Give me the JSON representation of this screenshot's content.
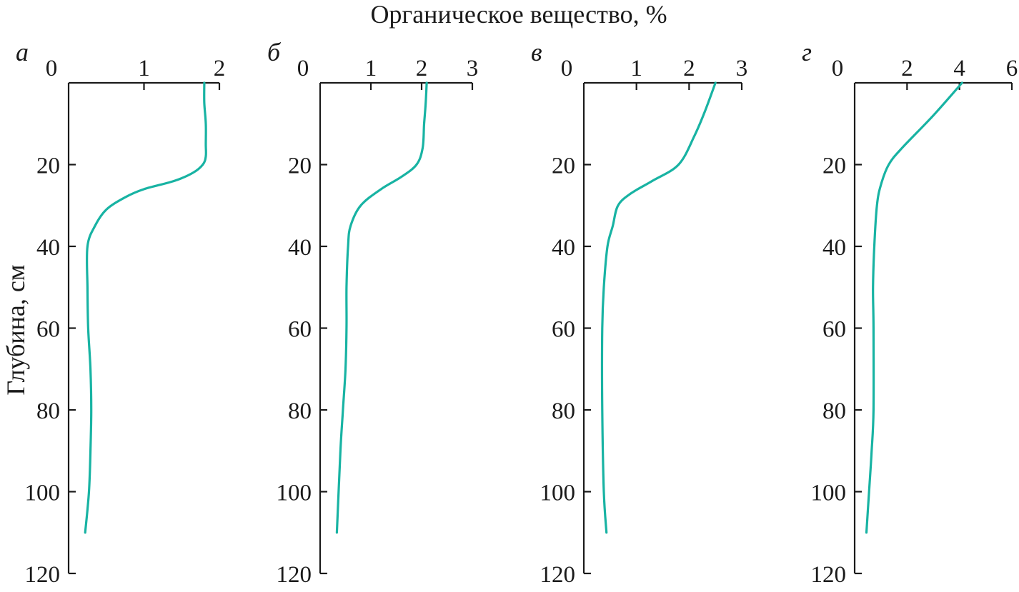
{
  "figure": {
    "title": "Органическое вещество, %",
    "ylabel": "Глубина, см",
    "line_color": "#18b3a3"
  },
  "chart_data": [
    {
      "type": "line",
      "panel": "а",
      "xlim": [
        0,
        2
      ],
      "xticks": [
        0,
        1,
        2
      ],
      "ylim": [
        0,
        120
      ],
      "yticks": [
        20,
        40,
        60,
        80,
        100,
        120
      ],
      "y_inverted": true,
      "series": [
        {
          "x": [
            1.8,
            1.8,
            1.82,
            1.82,
            1.82,
            1.78,
            1.65,
            1.4,
            1.0,
            0.75,
            0.5,
            0.35,
            0.25,
            0.25,
            0.26,
            0.29,
            0.3,
            0.29,
            0.27,
            0.22
          ],
          "y": [
            0,
            5,
            10,
            15,
            18,
            20,
            22,
            24,
            26,
            28,
            31,
            35,
            40,
            50,
            60,
            70,
            80,
            90,
            100,
            110
          ]
        }
      ]
    },
    {
      "type": "line",
      "panel": "б",
      "xlim": [
        0,
        3
      ],
      "xticks": [
        0,
        1,
        2,
        3
      ],
      "ylim": [
        0,
        120
      ],
      "yticks": [
        20,
        40,
        60,
        80,
        100,
        120
      ],
      "y_inverted": true,
      "series": [
        {
          "x": [
            2.1,
            2.08,
            2.05,
            2.02,
            1.9,
            1.6,
            1.2,
            0.8,
            0.6,
            0.55,
            0.52,
            0.52,
            0.5,
            0.45,
            0.4,
            0.33
          ],
          "y": [
            0,
            5,
            10,
            16,
            20,
            23,
            26,
            30,
            35,
            40,
            50,
            60,
            70,
            80,
            90,
            110
          ]
        }
      ]
    },
    {
      "type": "line",
      "panel": "в",
      "xlim": [
        0,
        3
      ],
      "xticks": [
        0,
        1,
        2,
        3
      ],
      "ylim": [
        0,
        120
      ],
      "yticks": [
        20,
        40,
        60,
        80,
        100,
        120
      ],
      "y_inverted": true,
      "series": [
        {
          "x": [
            2.5,
            2.3,
            2.1,
            1.8,
            1.3,
            0.9,
            0.65,
            0.55,
            0.45,
            0.38,
            0.35,
            0.35,
            0.38,
            0.43
          ],
          "y": [
            0,
            7,
            13,
            20,
            24,
            27,
            30,
            35,
            40,
            50,
            60,
            80,
            100,
            110
          ]
        }
      ]
    },
    {
      "type": "line",
      "panel": "г",
      "xlim": [
        0,
        6
      ],
      "xticks": [
        0,
        2,
        4,
        6
      ],
      "ylim": [
        0,
        120
      ],
      "yticks": [
        20,
        40,
        60,
        80,
        100,
        120
      ],
      "y_inverted": true,
      "series": [
        {
          "x": [
            4.1,
            3.0,
            1.8,
            1.3,
            1.0,
            0.85,
            0.75,
            0.7,
            0.72,
            0.72,
            0.65,
            0.55,
            0.45
          ],
          "y": [
            0,
            8,
            16,
            20,
            25,
            30,
            40,
            50,
            60,
            80,
            90,
            100,
            110
          ]
        }
      ]
    }
  ]
}
